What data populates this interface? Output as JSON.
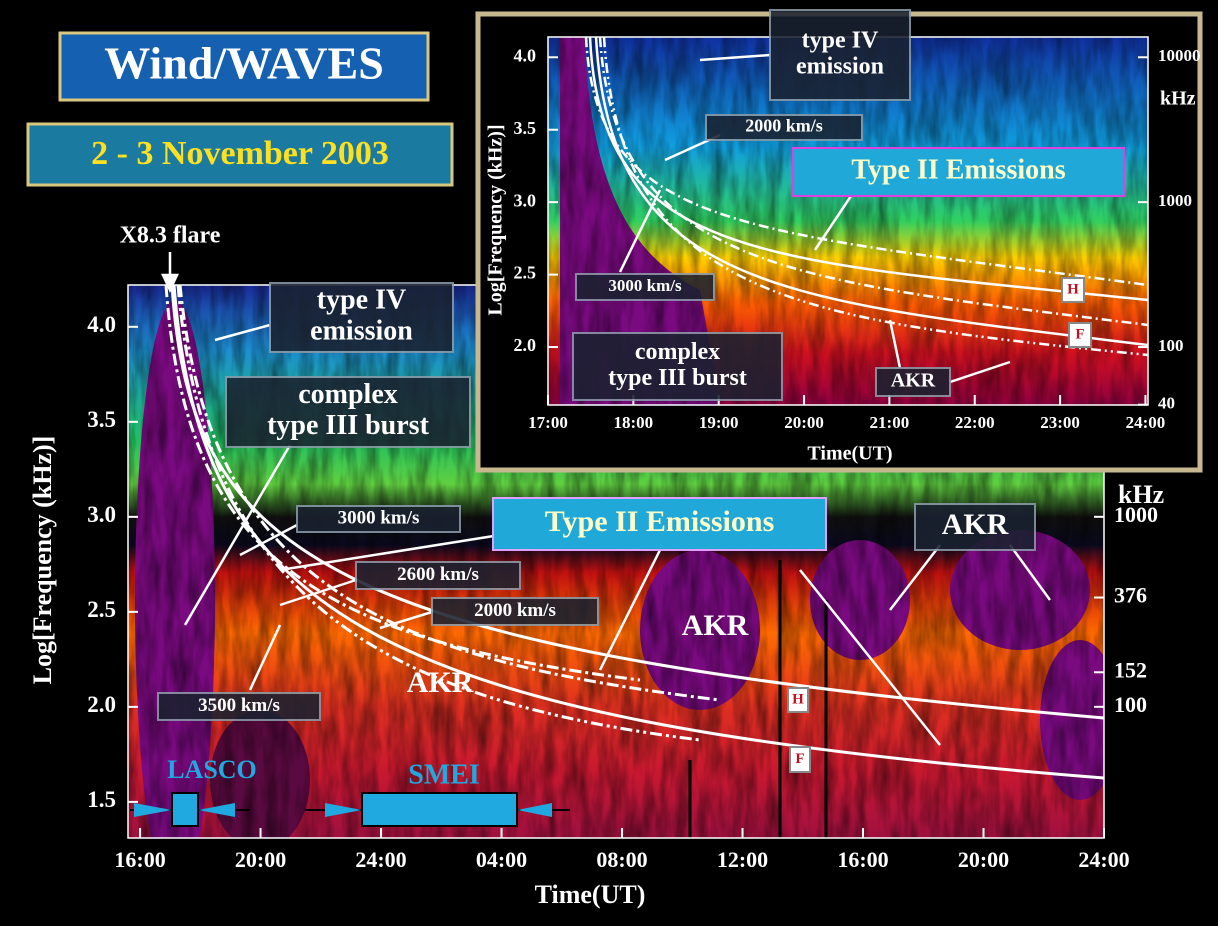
{
  "header": {
    "title": "Wind/WAVES",
    "date": "2 - 3 November 2003"
  },
  "chart_data": [
    {
      "type": "spectrogram",
      "xlabel": "Time(UT)",
      "ylabel": "Log[Frequency (kHz)]",
      "y2label": "kHz",
      "xlim": [
        -0.4,
        32
      ],
      "xticks": [
        {
          "value": 0,
          "label": "16:00"
        },
        {
          "value": 4,
          "label": "20:00"
        },
        {
          "value": 8,
          "label": "24:00"
        },
        {
          "value": 12,
          "label": "04:00"
        },
        {
          "value": 16,
          "label": "08:00"
        },
        {
          "value": 20,
          "label": "12:00"
        },
        {
          "value": 24,
          "label": "16:00"
        },
        {
          "value": 28,
          "label": "20:00"
        },
        {
          "value": 32,
          "label": "24:00"
        }
      ],
      "ylim": [
        1.31,
        4.22
      ],
      "yticks": [
        1.5,
        {
          "value": 2,
          "label": "2.0"
        },
        2.5,
        {
          "value": 3,
          "label": "3.0"
        },
        3.5,
        {
          "value": 4,
          "label": "4.0"
        }
      ],
      "y2log": true,
      "y2lim": [
        20.4,
        16596
      ],
      "y2ticks": [
        100,
        152,
        376,
        1000
      ],
      "annotations": [
        [
          "X8.3 flare"
        ],
        [
          "type IV",
          "emission"
        ],
        [
          "complex",
          "type III burst"
        ],
        [
          "3000 km/s"
        ],
        [
          "2600 km/s"
        ],
        [
          "2000 km/s"
        ],
        [
          "3500 km/s"
        ],
        [
          "Type II Emissions"
        ],
        [
          "AKR"
        ],
        [
          "AKR"
        ],
        [
          "AKR"
        ],
        [
          "H"
        ],
        [
          "F"
        ],
        [
          "LASCO"
        ],
        [
          "SMEI"
        ]
      ]
    },
    {
      "type": "spectrogram",
      "xlabel": "Time(UT)",
      "ylabel": "Log[Frequency (kHz)]",
      "y2label": "kHz",
      "xlim": [
        17,
        24.03
      ],
      "xticks": [
        {
          "value": 17,
          "label": "17:00"
        },
        {
          "value": 18,
          "label": "18:00"
        },
        {
          "value": 19,
          "label": "19:00"
        },
        {
          "value": 20,
          "label": "20:00"
        },
        {
          "value": 21,
          "label": "21:00"
        },
        {
          "value": 22,
          "label": "22:00"
        },
        {
          "value": 23,
          "label": "23:00"
        },
        {
          "value": 24,
          "label": "24:00"
        }
      ],
      "ylim": [
        1.6,
        4.14
      ],
      "yticks": [
        {
          "value": 2,
          "label": "2.0"
        },
        2.5,
        {
          "value": 3,
          "label": "3.0"
        },
        3.5,
        {
          "value": 4,
          "label": "4.0"
        }
      ],
      "y2log": true,
      "y2lim": [
        39.8,
        13804
      ],
      "y2ticks": [
        40,
        100,
        1000,
        10000
      ],
      "annotations": [
        [
          "type IV",
          "emission"
        ],
        [
          "2000 km/s"
        ],
        [
          "Type II Emissions"
        ],
        [
          "3000 km/s"
        ],
        [
          "complex",
          "type III burst"
        ],
        [
          "AKR"
        ],
        [
          "H"
        ],
        [
          "F"
        ]
      ]
    }
  ]
}
